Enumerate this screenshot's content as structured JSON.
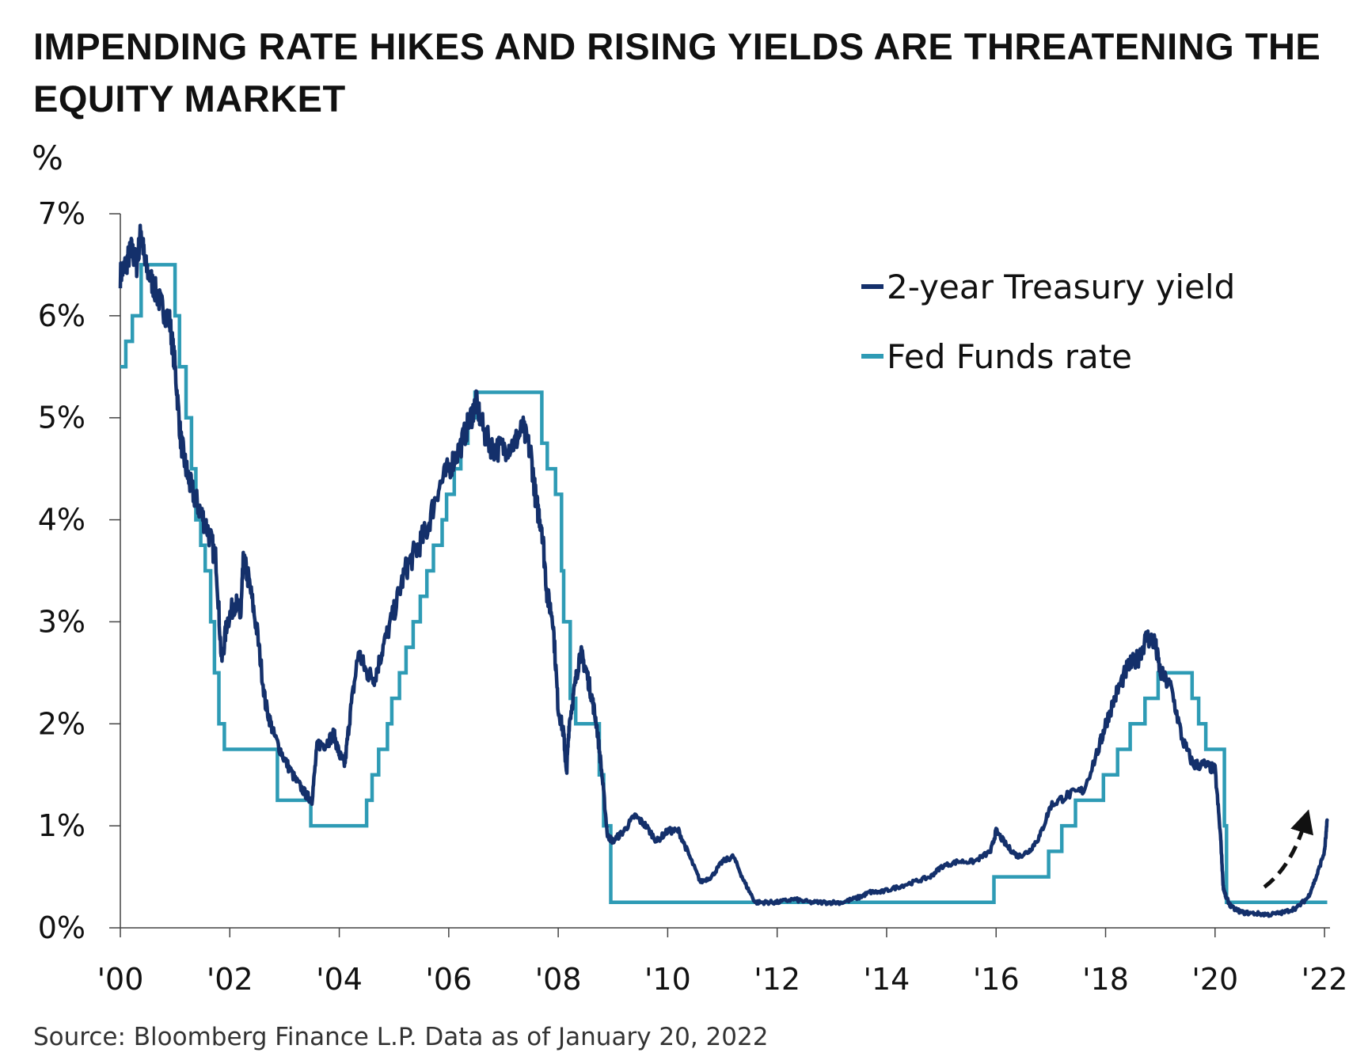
{
  "chart_data": {
    "type": "line",
    "title": "IMPENDING RATE HIKES AND RISING YIELDS ARE THREATENING THE EQUITY MARKET",
    "ylabel": "%",
    "xlabel": "",
    "xlim": [
      2000.0,
      2022.1
    ],
    "ylim": [
      0,
      7
    ],
    "y_ticks": [
      0,
      1,
      2,
      3,
      4,
      5,
      6,
      7
    ],
    "y_tick_labels": [
      "0%",
      "1%",
      "2%",
      "3%",
      "4%",
      "5%",
      "6%",
      "7%"
    ],
    "x_ticks": [
      2000,
      2002,
      2004,
      2006,
      2008,
      2010,
      2012,
      2014,
      2016,
      2018,
      2020,
      2022
    ],
    "x_tick_labels": [
      "'00",
      "'02",
      "'04",
      "'06",
      "'08",
      "'10",
      "'12",
      "'14",
      "'16",
      "'18",
      "'20",
      "'22"
    ],
    "grid": false,
    "legend_position": "top-right",
    "series": [
      {
        "name": "2-year Treasury yield",
        "color": "#14306b",
        "style": "noisy",
        "x": [
          2000.0,
          2000.1,
          2000.2,
          2000.3,
          2000.38,
          2000.45,
          2000.6,
          2000.75,
          2000.9,
          2001.0,
          2001.1,
          2001.2,
          2001.3,
          2001.45,
          2001.6,
          2001.75,
          2001.85,
          2001.95,
          2002.1,
          2002.2,
          2002.25,
          2002.35,
          2002.5,
          2002.65,
          2002.8,
          2003.0,
          2003.2,
          2003.4,
          2003.5,
          2003.6,
          2003.75,
          2003.9,
          2004.0,
          2004.1,
          2004.2,
          2004.35,
          2004.5,
          2004.65,
          2004.8,
          2005.0,
          2005.2,
          2005.4,
          2005.6,
          2005.8,
          2006.0,
          2006.2,
          2006.4,
          2006.5,
          2006.65,
          2006.8,
          2007.0,
          2007.2,
          2007.35,
          2007.5,
          2007.6,
          2007.7,
          2007.8,
          2007.9,
          2008.0,
          2008.1,
          2008.15,
          2008.2,
          2008.3,
          2008.4,
          2008.5,
          2008.6,
          2008.7,
          2008.8,
          2008.9,
          2009.0,
          2009.2,
          2009.4,
          2009.6,
          2009.8,
          2010.0,
          2010.2,
          2010.4,
          2010.6,
          2010.8,
          2011.0,
          2011.2,
          2011.4,
          2011.6,
          2011.8,
          2012.0,
          2012.3,
          2012.6,
          2012.9,
          2013.2,
          2013.5,
          2013.7,
          2013.9,
          2014.2,
          2014.5,
          2014.8,
          2015.0,
          2015.3,
          2015.6,
          2015.9,
          2016.0,
          2016.2,
          2016.4,
          2016.6,
          2016.8,
          2017.0,
          2017.3,
          2017.6,
          2017.9,
          2018.0,
          2018.2,
          2018.4,
          2018.6,
          2018.75,
          2018.9,
          2019.0,
          2019.2,
          2019.4,
          2019.6,
          2019.8,
          2020.0,
          2020.1,
          2020.15,
          2020.2,
          2020.3,
          2020.5,
          2020.75,
          2021.0,
          2021.25,
          2021.5,
          2021.7,
          2021.85,
          2022.0,
          2022.05
        ],
        "y": [
          6.4,
          6.5,
          6.65,
          6.5,
          6.85,
          6.5,
          6.3,
          6.1,
          5.95,
          5.5,
          4.8,
          4.5,
          4.3,
          4.1,
          3.9,
          3.6,
          2.6,
          3.0,
          3.2,
          3.05,
          3.6,
          3.4,
          2.9,
          2.2,
          1.9,
          1.65,
          1.45,
          1.3,
          1.25,
          1.8,
          1.8,
          1.9,
          1.7,
          1.6,
          2.1,
          2.7,
          2.5,
          2.45,
          2.75,
          3.1,
          3.5,
          3.7,
          3.9,
          4.3,
          4.5,
          4.7,
          5.0,
          5.15,
          4.85,
          4.7,
          4.7,
          4.75,
          4.9,
          4.65,
          4.15,
          3.95,
          3.25,
          3.05,
          2.15,
          1.9,
          1.5,
          2.0,
          2.35,
          2.7,
          2.55,
          2.3,
          2.0,
          1.5,
          0.9,
          0.85,
          0.95,
          1.1,
          1.0,
          0.85,
          0.95,
          0.95,
          0.7,
          0.45,
          0.5,
          0.65,
          0.7,
          0.45,
          0.25,
          0.25,
          0.25,
          0.28,
          0.25,
          0.25,
          0.25,
          0.3,
          0.35,
          0.35,
          0.4,
          0.45,
          0.5,
          0.6,
          0.65,
          0.65,
          0.75,
          0.95,
          0.8,
          0.7,
          0.75,
          0.9,
          1.2,
          1.3,
          1.35,
          1.8,
          2.0,
          2.3,
          2.55,
          2.65,
          2.85,
          2.8,
          2.5,
          2.35,
          1.85,
          1.6,
          1.6,
          1.55,
          0.9,
          0.4,
          0.3,
          0.2,
          0.15,
          0.14,
          0.13,
          0.15,
          0.2,
          0.3,
          0.5,
          0.75,
          1.05
        ]
      },
      {
        "name": "Fed Funds rate",
        "color": "#2e9bb5",
        "style": "step",
        "x": [
          2000.0,
          2000.1,
          2000.22,
          2000.38,
          2001.0,
          2001.08,
          2001.2,
          2001.3,
          2001.38,
          2001.47,
          2001.55,
          2001.65,
          2001.72,
          2001.8,
          2001.9,
          2001.98,
          2002.87,
          2003.48,
          2004.5,
          2004.6,
          2004.72,
          2004.88,
          2004.96,
          2005.1,
          2005.22,
          2005.35,
          2005.48,
          2005.6,
          2005.72,
          2005.88,
          2005.96,
          2006.1,
          2006.22,
          2006.35,
          2006.48,
          2007.7,
          2007.8,
          2007.95,
          2008.06,
          2008.1,
          2008.22,
          2008.32,
          2008.75,
          2008.83,
          2008.96,
          2015.96,
          2016.96,
          2017.2,
          2017.45,
          2017.96,
          2018.22,
          2018.45,
          2018.72,
          2018.96,
          2019.58,
          2019.7,
          2019.83,
          2020.17,
          2020.21,
          2022.05
        ],
        "y": [
          5.5,
          5.75,
          6.0,
          6.5,
          6.0,
          5.5,
          5.0,
          4.5,
          4.0,
          3.75,
          3.5,
          3.0,
          2.5,
          2.0,
          1.75,
          1.75,
          1.25,
          1.0,
          1.25,
          1.5,
          1.75,
          2.0,
          2.25,
          2.5,
          2.75,
          3.0,
          3.25,
          3.5,
          3.75,
          4.0,
          4.25,
          4.5,
          4.75,
          5.0,
          5.25,
          4.75,
          4.5,
          4.25,
          3.5,
          3.0,
          2.25,
          2.0,
          1.5,
          1.0,
          0.25,
          0.5,
          0.75,
          1.0,
          1.25,
          1.5,
          1.75,
          2.0,
          2.25,
          2.5,
          2.25,
          2.0,
          1.75,
          1.0,
          0.25,
          0.25
        ]
      }
    ],
    "annotations": [
      {
        "type": "dashed-arrow",
        "color": "#111111",
        "from": [
          2020.9,
          0.4
        ],
        "via": [
          2021.4,
          0.6
        ],
        "to": [
          2021.65,
          1.05
        ]
      }
    ],
    "source": "Source: Bloomberg Finance L.P. Data as of January 20, 2022"
  }
}
